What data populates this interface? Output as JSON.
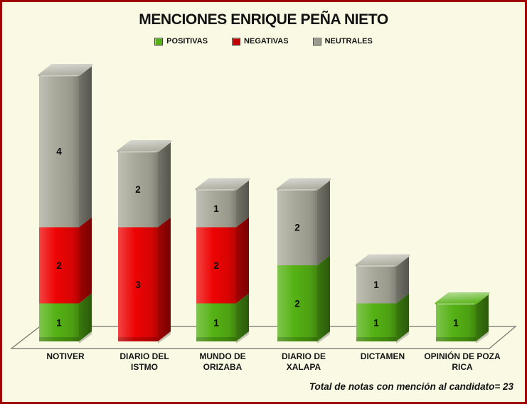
{
  "page": {
    "background": "#FAFAE4",
    "frame_color": "#A00000"
  },
  "title": "MENCIONES ENRIQUE PEÑA NIETO",
  "legend": [
    {
      "label": "POSITIVAS",
      "color": "#55B214"
    },
    {
      "label": "NEGATIVAS",
      "color": "#C00000"
    },
    {
      "label": "NEUTRALES",
      "color": "#9A9A8E"
    }
  ],
  "footer": "Total de notas con mención al candidato= 23",
  "chart_data": {
    "type": "bar",
    "subtype": "stacked-3d-columns",
    "title": "MENCIONES ENRIQUE PEÑA NIETO",
    "categories": [
      "NOTIVER",
      "DIARIO DEL ISTMO",
      "MUNDO DE ORIZABA",
      "DIARIO DE XALAPA",
      "DICTAMEN",
      "OPINIÓN DE POZA RICA"
    ],
    "categories_display": [
      [
        "NOTIVER"
      ],
      [
        "DIARIO DEL",
        "ISTMO"
      ],
      [
        "MUNDO DE",
        "ORIZABA"
      ],
      [
        "DIARIO DE",
        "XALAPA"
      ],
      [
        "DICTAMEN"
      ],
      [
        "OPINIÓN DE POZA",
        "RICA"
      ]
    ],
    "series": [
      {
        "name": "POSITIVAS",
        "color": "#55B214",
        "values": [
          1,
          0,
          1,
          2,
          1,
          1
        ]
      },
      {
        "name": "NEGATIVAS",
        "color": "#EE0404",
        "values": [
          2,
          3,
          2,
          0,
          0,
          0
        ]
      },
      {
        "name": "NEUTRALES",
        "color": "#A9A99B",
        "values": [
          4,
          2,
          1,
          2,
          1,
          0
        ]
      }
    ],
    "totals_per_category": [
      7,
      5,
      4,
      4,
      2,
      1
    ],
    "total": 23,
    "value_labels_shown": true,
    "legend_position": "top",
    "xlabel": "",
    "ylabel": "",
    "gridlines": false,
    "annotation": "Total de notas con mención al candidato= 23"
  }
}
